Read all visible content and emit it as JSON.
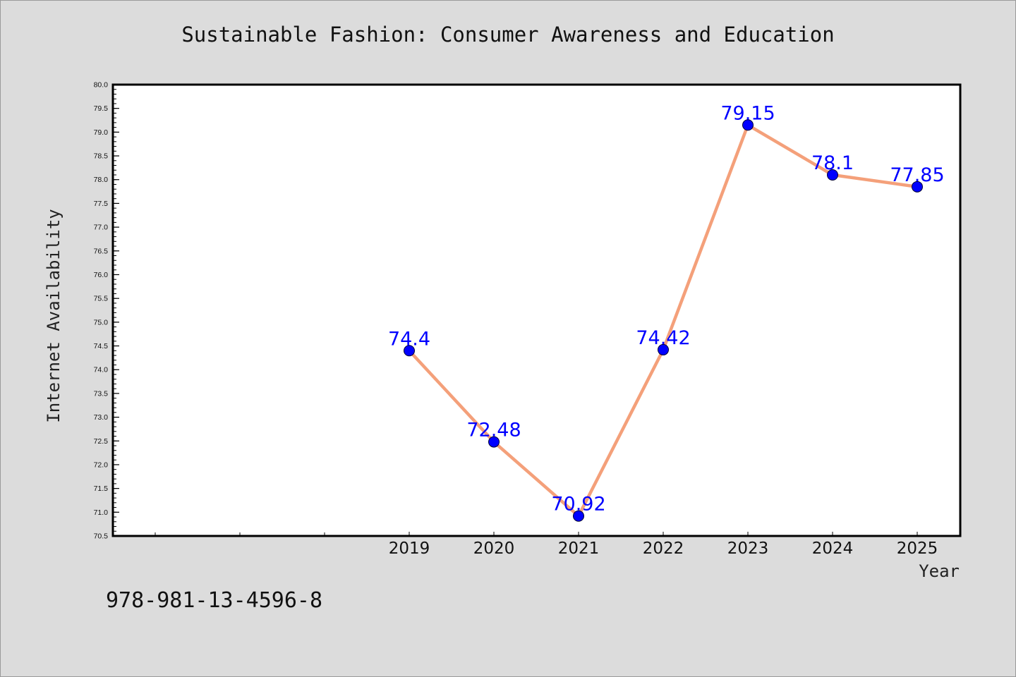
{
  "footer_code": "978-981-13-4596-8",
  "chart_data": {
    "type": "line",
    "title": "Sustainable Fashion: Consumer Awareness and Education",
    "xlabel": "Year",
    "ylabel": "Internet Availability",
    "x_tick_labels": [
      "2019",
      "2020",
      "2021",
      "2022",
      "2023",
      "2024",
      "2025"
    ],
    "x_empty_ticks": 3,
    "y_tick_labels": [
      "70.5",
      "71.0",
      "71.5",
      "72.0",
      "72.5",
      "73.0",
      "73.5",
      "74.0",
      "74.5",
      "75.0",
      "75.5",
      "76.0",
      "76.5",
      "77.0",
      "77.5",
      "78.0",
      "78.5",
      "79.0",
      "79.5",
      "80.0"
    ],
    "ylim": [
      70.5,
      80.0
    ],
    "series": [
      {
        "x": [
          "2019",
          "2020",
          "2021",
          "2022",
          "2023",
          "2024",
          "2025"
        ],
        "values": [
          74.4,
          72.48,
          70.92,
          74.42,
          79.15,
          78.1,
          77.85
        ],
        "data_labels": [
          "74.4",
          "72.48",
          "70.92",
          "74.42",
          "79.15",
          "78.1",
          "77.85"
        ]
      }
    ],
    "colors": {
      "line": "#f4a07a",
      "marker": "#0000ff",
      "label": "#0000ff"
    },
    "grid": false,
    "legend": "none"
  }
}
